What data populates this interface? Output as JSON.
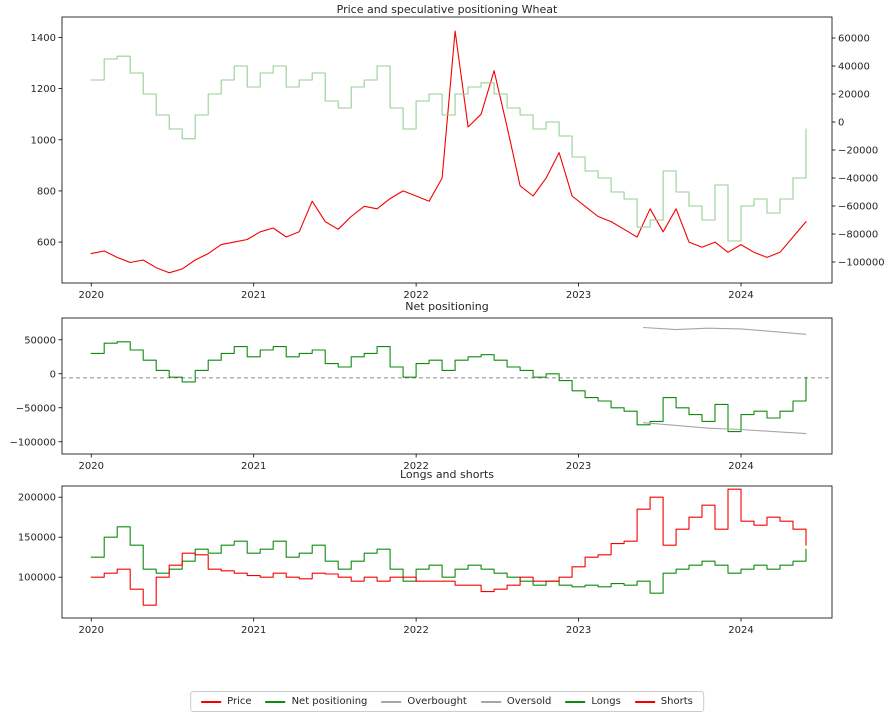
{
  "figure": {
    "background": "#ffffff"
  },
  "legend": {
    "items": [
      {
        "label": "Price",
        "color": "#f50000"
      },
      {
        "label": "Net positioning",
        "color": "#0f8a0f"
      },
      {
        "label": "Overbought",
        "color": "#a6a6a6"
      },
      {
        "label": "Oversold",
        "color": "#a6a6a6"
      },
      {
        "label": "Longs",
        "color": "#0f8a0f"
      },
      {
        "label": "Shorts",
        "color": "#f50000"
      }
    ]
  },
  "chart_data": [
    {
      "type": "line",
      "title": "Price and speculative positioning Wheat",
      "xlabel": "",
      "ylabel": "",
      "xlim": [
        2019.82,
        2024.56
      ],
      "xticks": [
        2020,
        2021,
        2022,
        2023,
        2024
      ],
      "xtick_labels": [
        "2020",
        "2021",
        "2022",
        "2023",
        "2024"
      ],
      "ylim": [
        440,
        1480
      ],
      "yticks": [
        1400,
        1200,
        1000,
        800,
        600
      ],
      "ytick_labels": [
        "1400",
        "1200",
        "1000",
        "800",
        "600"
      ],
      "right_ylim": [
        -115000,
        75000
      ],
      "right_yticks": [
        60000,
        40000,
        20000,
        0,
        -20000,
        -40000,
        -60000,
        -80000,
        -100000
      ],
      "right_ytick_labels": [
        "60000",
        "40000",
        "20000",
        "0",
        "−20000",
        "−40000",
        "−60000",
        "−80000",
        "−100000"
      ],
      "x": [
        2020.0,
        2020.08,
        2020.16,
        2020.24,
        2020.32,
        2020.4,
        2020.48,
        2020.56,
        2020.64,
        2020.72,
        2020.8,
        2020.88,
        2020.96,
        2021.04,
        2021.12,
        2021.2,
        2021.28,
        2021.36,
        2021.44,
        2021.52,
        2021.6,
        2021.68,
        2021.76,
        2021.84,
        2021.92,
        2022.0,
        2022.08,
        2022.16,
        2022.24,
        2022.32,
        2022.4,
        2022.48,
        2022.56,
        2022.64,
        2022.72,
        2022.8,
        2022.88,
        2022.96,
        2023.04,
        2023.12,
        2023.2,
        2023.28,
        2023.36,
        2023.44,
        2023.52,
        2023.6,
        2023.68,
        2023.76,
        2023.84,
        2023.92,
        2024.0,
        2024.08,
        2024.16,
        2024.24,
        2024.32,
        2024.4
      ],
      "series": [
        {
          "name": "Price",
          "color": "#f50000",
          "axis": "left",
          "step": false,
          "values": [
            555,
            565,
            540,
            520,
            530,
            500,
            480,
            495,
            530,
            555,
            590,
            600,
            610,
            640,
            655,
            620,
            640,
            760,
            680,
            650,
            700,
            740,
            730,
            770,
            800,
            780,
            760,
            850,
            1425,
            1050,
            1100,
            1270,
            1050,
            820,
            780,
            850,
            950,
            780,
            740,
            700,
            680,
            650,
            620,
            730,
            640,
            730,
            600,
            580,
            600,
            560,
            590,
            560,
            540,
            560,
            620,
            680
          ]
        },
        {
          "name": "Net positioning",
          "color": "#96cf96",
          "axis": "right",
          "step": true,
          "values": [
            30000,
            45000,
            47000,
            35000,
            20000,
            5000,
            -5000,
            -12000,
            5000,
            20000,
            30000,
            40000,
            25000,
            35000,
            40000,
            25000,
            30000,
            35000,
            15000,
            10000,
            25000,
            30000,
            40000,
            10000,
            -5000,
            15000,
            20000,
            5000,
            20000,
            25000,
            28000,
            20000,
            10000,
            5000,
            -5000,
            0,
            -10000,
            -25000,
            -35000,
            -40000,
            -50000,
            -55000,
            -75000,
            -70000,
            -35000,
            -50000,
            -60000,
            -70000,
            -45000,
            -85000,
            -60000,
            -55000,
            -65000,
            -55000,
            -40000,
            -5000
          ]
        }
      ]
    },
    {
      "type": "line",
      "title": "Net positioning",
      "xlabel": "",
      "ylabel": "",
      "xlim": [
        2019.82,
        2024.56
      ],
      "xticks": [
        2020,
        2021,
        2022,
        2023,
        2024
      ],
      "xtick_labels": [
        "2020",
        "2021",
        "2022",
        "2023",
        "2024"
      ],
      "ylim": [
        -118000,
        82000
      ],
      "yticks": [
        50000,
        0,
        -50000,
        -100000
      ],
      "ytick_labels": [
        "50000",
        "0",
        "−50000",
        "−100000"
      ],
      "hline": {
        "y": -6000,
        "color": "#8c8c8c",
        "dash": "4 3"
      },
      "x": [
        2020.0,
        2020.08,
        2020.16,
        2020.24,
        2020.32,
        2020.4,
        2020.48,
        2020.56,
        2020.64,
        2020.72,
        2020.8,
        2020.88,
        2020.96,
        2021.04,
        2021.12,
        2021.2,
        2021.28,
        2021.36,
        2021.44,
        2021.52,
        2021.6,
        2021.68,
        2021.76,
        2021.84,
        2021.92,
        2022.0,
        2022.08,
        2022.16,
        2022.24,
        2022.32,
        2022.4,
        2022.48,
        2022.56,
        2022.64,
        2022.72,
        2022.8,
        2022.88,
        2022.96,
        2023.04,
        2023.12,
        2023.2,
        2023.28,
        2023.36,
        2023.44,
        2023.52,
        2023.6,
        2023.68,
        2023.76,
        2023.84,
        2023.92,
        2024.0,
        2024.08,
        2024.16,
        2024.24,
        2024.32,
        2024.4
      ],
      "series": [
        {
          "name": "Net positioning",
          "color": "#0f8a0f",
          "axis": "left",
          "step": true,
          "values": [
            30000,
            45000,
            47000,
            35000,
            20000,
            5000,
            -5000,
            -12000,
            5000,
            20000,
            30000,
            40000,
            25000,
            35000,
            40000,
            25000,
            30000,
            35000,
            15000,
            10000,
            25000,
            30000,
            40000,
            10000,
            -5000,
            15000,
            20000,
            5000,
            20000,
            25000,
            28000,
            20000,
            10000,
            5000,
            -5000,
            0,
            -10000,
            -25000,
            -35000,
            -40000,
            -50000,
            -55000,
            -75000,
            -70000,
            -35000,
            -50000,
            -60000,
            -70000,
            -45000,
            -85000,
            -60000,
            -55000,
            -65000,
            -55000,
            -40000,
            -5000
          ]
        },
        {
          "name": "Overbought",
          "color": "#a6a6a6",
          "axis": "left",
          "step": false,
          "x": [
            2023.4,
            2023.6,
            2023.8,
            2024.0,
            2024.2,
            2024.4
          ],
          "values": [
            68000,
            65000,
            67000,
            66000,
            62000,
            58000
          ]
        },
        {
          "name": "Oversold",
          "color": "#a6a6a6",
          "axis": "left",
          "step": false,
          "x": [
            2023.4,
            2023.6,
            2023.8,
            2024.0,
            2024.2,
            2024.4
          ],
          "values": [
            -72000,
            -76000,
            -80000,
            -82000,
            -85000,
            -88000
          ]
        }
      ]
    },
    {
      "type": "line",
      "title": "Longs and shorts",
      "xlabel": "",
      "ylabel": "",
      "xlim": [
        2019.82,
        2024.56
      ],
      "xticks": [
        2020,
        2021,
        2022,
        2023,
        2024
      ],
      "xtick_labels": [
        "2020",
        "2021",
        "2022",
        "2023",
        "2024"
      ],
      "ylim": [
        49000,
        214000
      ],
      "yticks": [
        200000,
        150000,
        100000
      ],
      "ytick_labels": [
        "200000",
        "150000",
        "100000"
      ],
      "x": [
        2020.0,
        2020.08,
        2020.16,
        2020.24,
        2020.32,
        2020.4,
        2020.48,
        2020.56,
        2020.64,
        2020.72,
        2020.8,
        2020.88,
        2020.96,
        2021.04,
        2021.12,
        2021.2,
        2021.28,
        2021.36,
        2021.44,
        2021.52,
        2021.6,
        2021.68,
        2021.76,
        2021.84,
        2021.92,
        2022.0,
        2022.08,
        2022.16,
        2022.24,
        2022.32,
        2022.4,
        2022.48,
        2022.56,
        2022.64,
        2022.72,
        2022.8,
        2022.88,
        2022.96,
        2023.04,
        2023.12,
        2023.2,
        2023.28,
        2023.36,
        2023.44,
        2023.52,
        2023.6,
        2023.68,
        2023.76,
        2023.84,
        2023.92,
        2024.0,
        2024.08,
        2024.16,
        2024.24,
        2024.32,
        2024.4
      ],
      "series": [
        {
          "name": "Longs",
          "color": "#0f8a0f",
          "axis": "left",
          "step": true,
          "values": [
            125000,
            150000,
            163000,
            140000,
            110000,
            105000,
            110000,
            120000,
            135000,
            130000,
            140000,
            145000,
            130000,
            135000,
            145000,
            125000,
            130000,
            140000,
            120000,
            110000,
            120000,
            130000,
            135000,
            110000,
            95000,
            110000,
            115000,
            100000,
            110000,
            115000,
            110000,
            105000,
            100000,
            95000,
            90000,
            95000,
            90000,
            88000,
            90000,
            88000,
            92000,
            90000,
            95000,
            80000,
            105000,
            110000,
            115000,
            120000,
            115000,
            105000,
            110000,
            115000,
            110000,
            115000,
            120000,
            135000
          ]
        },
        {
          "name": "Shorts",
          "color": "#f50000",
          "axis": "left",
          "step": true,
          "values": [
            100000,
            105000,
            110000,
            85000,
            65000,
            100000,
            115000,
            130000,
            128000,
            110000,
            108000,
            105000,
            102000,
            100000,
            105000,
            100000,
            98000,
            105000,
            104000,
            100000,
            95000,
            100000,
            95000,
            100000,
            100000,
            95000,
            95000,
            95000,
            90000,
            90000,
            82000,
            85000,
            90000,
            100000,
            95000,
            95000,
            100000,
            113000,
            125000,
            128000,
            142000,
            145000,
            185000,
            200000,
            140000,
            160000,
            175000,
            190000,
            160000,
            210000,
            170000,
            165000,
            175000,
            170000,
            160000,
            140000
          ]
        }
      ]
    }
  ]
}
